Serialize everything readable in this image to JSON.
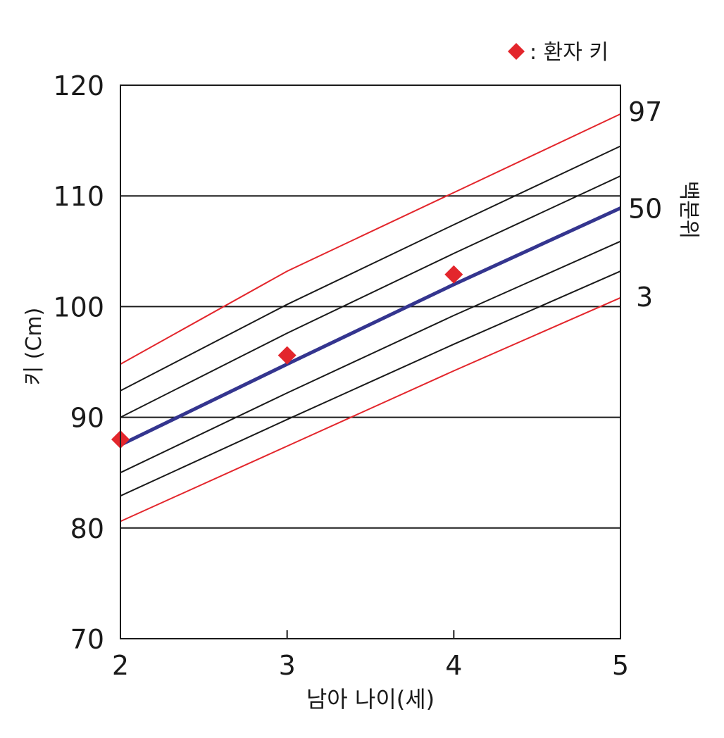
{
  "chart_data": {
    "type": "line",
    "title": "",
    "legend_text": ": 환자 키",
    "legend_marker_color": "#e3262c",
    "legend_placement": "top-right",
    "xlabel": "남아 나이(세)",
    "ylabel": "키 (Cm)",
    "right_axis_label": "백분위",
    "xlim": [
      2,
      5
    ],
    "ylim": [
      70,
      120
    ],
    "x_ticks": [
      2,
      3,
      4,
      5
    ],
    "y_ticks": [
      70,
      80,
      90,
      100,
      110,
      120
    ],
    "grid": "horizontal lines at 80, 90, 100, 110",
    "x": [
      2,
      3,
      4,
      5
    ],
    "series": [
      {
        "name": "97",
        "percentile_label": "97",
        "color": "#e3262c",
        "values": [
          94.8,
          103.2,
          110.3,
          117.4
        ]
      },
      {
        "name": "",
        "color": "#1a1a1a",
        "values": [
          92.4,
          100.2,
          107.4,
          114.5
        ]
      },
      {
        "name": "",
        "color": "#1a1a1a",
        "values": [
          90.0,
          97.6,
          104.8,
          111.8
        ]
      },
      {
        "name": "50",
        "percentile_label": "50",
        "color": "#34358f",
        "values": [
          87.5,
          94.8,
          102.0,
          108.9
        ]
      },
      {
        "name": "",
        "color": "#1a1a1a",
        "values": [
          85.0,
          92.2,
          99.2,
          105.9
        ]
      },
      {
        "name": "",
        "color": "#1a1a1a",
        "values": [
          82.9,
          89.8,
          96.6,
          103.2
        ]
      },
      {
        "name": "3",
        "percentile_label": "3",
        "color": "#e3262c",
        "values": [
          80.6,
          87.4,
          94.2,
          100.8
        ]
      }
    ],
    "patient": {
      "color": "#e3262c",
      "points": [
        {
          "x": 2,
          "y": 88.0
        },
        {
          "x": 3,
          "y": 95.6
        },
        {
          "x": 4,
          "y": 102.9
        }
      ]
    }
  }
}
